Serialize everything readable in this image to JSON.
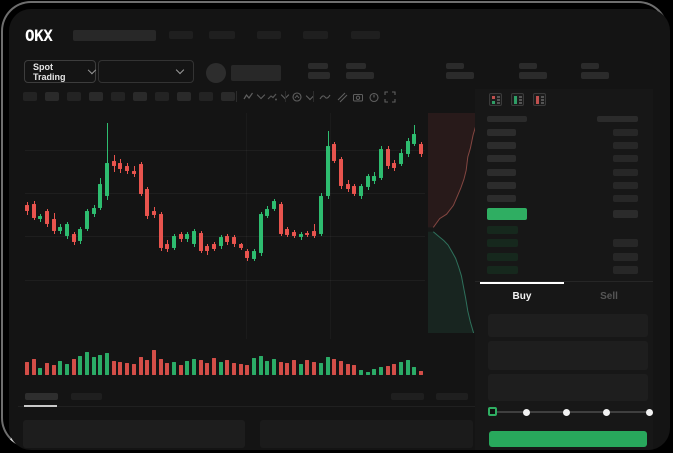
{
  "app": {
    "logo_text": "OKX"
  },
  "header": {
    "nav_placeholders": 5,
    "search_placeholder": true
  },
  "market_bar": {
    "pair_selector_label": "Spot Trading",
    "stat_placeholders": 5
  },
  "toolbar": {
    "tool_placeholders": 10,
    "dropdown_icons": [
      "chart-style-icon",
      "compare-icon",
      "indicators-icon"
    ],
    "icons": [
      "trendline-icon",
      "measure-icon",
      "camera-icon",
      "timer-icon",
      "fullscreen-icon"
    ]
  },
  "order_book": {
    "layout_toggle_icons": [
      "book-both-icon",
      "book-bids-icon",
      "book-asks-icon"
    ],
    "ask_rows": 6,
    "bid_rows": 4,
    "price_highlight_color": "#2fae62"
  },
  "trade_panel": {
    "buy_tab_label": "Buy",
    "sell_tab_label": "Sell",
    "active_tab": "Buy",
    "input_placeholders": 3,
    "amount_slider": {
      "stops": 5,
      "selected_index": 0
    },
    "submit_button_label": ""
  },
  "colors": {
    "up": "#2ebd70",
    "down": "#e8544e",
    "accent_green": "#28a85c",
    "background": "#141414"
  },
  "chart_data": {
    "type": "candlestick",
    "title": "",
    "xlabel": "",
    "ylabel": "",
    "note": "no axis labels visible; values normalized 0-100 of plot height",
    "ylim": [
      0,
      100
    ],
    "candles_ochl": [
      [
        59.5,
        56.7,
        61,
        55
      ],
      [
        60,
        53.5,
        61.5,
        52.5
      ],
      [
        53,
        54.5,
        55.5,
        51.5
      ],
      [
        56.7,
        50.7,
        57.5,
        49.5
      ],
      [
        53,
        47.4,
        56,
        46
      ],
      [
        47.4,
        49.3,
        50.5,
        46
      ],
      [
        45.1,
        50.7,
        51.5,
        43.5
      ],
      [
        46,
        42.3,
        47,
        41
      ],
      [
        42.8,
        48.4,
        49.5,
        41.5
      ],
      [
        48.4,
        56.7,
        57.5,
        47.5
      ],
      [
        55.3,
        58.1,
        59.5,
        54
      ],
      [
        58.1,
        69.3,
        72,
        57
      ],
      [
        63.7,
        79.1,
        97.5,
        62
      ],
      [
        80,
        77.7,
        83,
        75
      ],
      [
        79.1,
        76.3,
        81,
        74.5
      ],
      [
        77.7,
        75.3,
        79,
        74
      ],
      [
        75.3,
        74,
        77.5,
        72.5
      ],
      [
        78.6,
        64.7,
        79.5,
        63.5
      ],
      [
        67,
        54.4,
        68,
        53
      ],
      [
        56.7,
        54.9,
        58.5,
        53.5
      ],
      [
        55.3,
        39.5,
        56.5,
        38
      ],
      [
        41.4,
        39.1,
        43.5,
        37.5
      ],
      [
        39.5,
        45.1,
        46,
        38.5
      ],
      [
        46,
        43.7,
        47,
        42.5
      ],
      [
        43.7,
        46,
        47,
        42.5
      ],
      [
        41.4,
        47.4,
        48.5,
        40
      ],
      [
        46.5,
        38.1,
        47.5,
        37
      ],
      [
        40.5,
        38.1,
        41.5,
        36.5
      ],
      [
        41.4,
        39.1,
        42.5,
        38
      ],
      [
        40.5,
        44.7,
        45.5,
        39
      ],
      [
        45.1,
        42.3,
        46,
        41
      ],
      [
        44.7,
        41.4,
        45.5,
        40
      ],
      [
        41.4,
        39.5,
        42,
        38.5
      ],
      [
        38.1,
        34.9,
        39,
        33.5
      ],
      [
        34.4,
        38.1,
        39,
        33.5
      ],
      [
        37.2,
        55.3,
        56.5,
        36
      ],
      [
        54.4,
        57.7,
        59,
        53.5
      ],
      [
        57.7,
        61.4,
        62.5,
        56.5
      ],
      [
        60,
        46,
        61,
        45
      ],
      [
        48.4,
        45.6,
        49.5,
        44.5
      ],
      [
        47,
        45.1,
        48,
        44
      ],
      [
        44.7,
        46,
        47,
        43.5
      ],
      [
        46.5,
        45.6,
        47.5,
        44.5
      ],
      [
        47.4,
        45.1,
        50.7,
        44
      ],
      [
        46,
        63.7,
        65,
        45
      ],
      [
        63.7,
        87,
        94,
        62.5
      ],
      [
        87.9,
        80,
        89,
        79
      ],
      [
        80.9,
        68.4,
        82,
        67
      ],
      [
        69.3,
        67,
        71,
        65.5
      ],
      [
        68.4,
        64.7,
        69.5,
        63.5
      ],
      [
        63.7,
        68.4,
        69.5,
        62.5
      ],
      [
        67.9,
        73,
        74,
        66.5
      ],
      [
        70.7,
        73,
        75,
        69.5
      ],
      [
        72.1,
        85.6,
        87,
        71
      ],
      [
        85.6,
        77.7,
        87,
        76.5
      ],
      [
        79.1,
        76.7,
        80.5,
        75.5
      ],
      [
        78.6,
        83.7,
        85.5,
        77.5
      ],
      [
        83.3,
        89.3,
        90.5,
        82
      ],
      [
        87.9,
        92.6,
        97,
        87
      ],
      [
        87.9,
        83.3,
        89,
        82
      ]
    ],
    "volume": [
      50,
      62,
      28,
      48,
      40,
      55,
      42,
      60,
      75,
      88,
      70,
      78,
      85,
      55,
      52,
      48,
      42,
      68,
      58,
      95,
      60,
      45,
      52,
      38,
      55,
      62,
      58,
      46,
      64,
      52,
      58,
      48,
      44,
      40,
      65,
      72,
      55,
      60,
      52,
      48,
      58,
      44,
      56,
      50,
      46,
      68,
      62,
      54,
      44,
      38,
      18,
      12,
      22,
      30,
      36,
      42,
      52,
      58,
      30,
      16
    ],
    "depth": {
      "asks": [
        [
          10,
          52
        ],
        [
          22,
          48
        ],
        [
          35,
          46
        ],
        [
          48,
          42
        ],
        [
          55,
          38
        ],
        [
          62,
          34
        ],
        [
          68,
          30
        ],
        [
          72,
          26
        ],
        [
          75,
          20
        ],
        [
          80,
          16
        ],
        [
          85,
          10
        ],
        [
          90,
          6
        ],
        [
          95,
          2
        ],
        [
          100,
          0
        ]
      ],
      "bids": [
        [
          10,
          54
        ],
        [
          20,
          56
        ],
        [
          30,
          58
        ],
        [
          38,
          60
        ],
        [
          45,
          63
        ],
        [
          52,
          66
        ],
        [
          58,
          70
        ],
        [
          63,
          74
        ],
        [
          67,
          79
        ],
        [
          71,
          84
        ],
        [
          75,
          90
        ],
        [
          80,
          95
        ],
        [
          86,
          100
        ]
      ]
    }
  }
}
